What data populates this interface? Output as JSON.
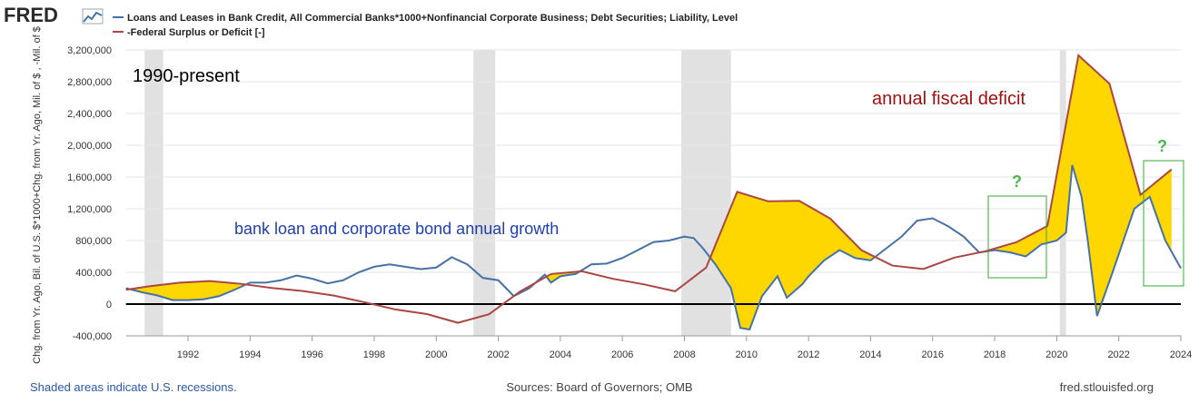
{
  "chart_data": {
    "type": "line",
    "logo": "FRED",
    "ylabel": "Chg. from Yr. Ago, Bil. of U.S. $*1000+Chg. from Yr. Ago, Mil. of $ , -Mil. of $",
    "xlim": [
      1990,
      2024
    ],
    "xticks": [
      1992,
      1994,
      1996,
      1998,
      2000,
      2002,
      2004,
      2006,
      2008,
      2010,
      2012,
      2014,
      2016,
      2018,
      2020,
      2022,
      2024
    ],
    "ylim": [
      -400000,
      3200000
    ],
    "yticks": [
      {
        "value": -400000,
        "label": "-400,000"
      },
      0,
      {
        "value": 400000,
        "label": "400,000"
      },
      {
        "value": 800000,
        "label": "800,000"
      },
      {
        "value": 1200000,
        "label": "1,200,000"
      },
      {
        "value": 1600000,
        "label": "1,600,000"
      },
      {
        "value": 2000000,
        "label": "2,000,000"
      },
      {
        "value": 2400000,
        "label": "2,400,000"
      },
      {
        "value": 2800000,
        "label": "2,800,000"
      },
      {
        "value": 3200000,
        "label": "3,200,000"
      }
    ],
    "grid": true,
    "recessions": [
      [
        1990.6,
        1991.2
      ],
      [
        2001.2,
        2001.9
      ],
      [
        2007.9,
        2009.5
      ],
      [
        2020.1,
        2020.3
      ]
    ],
    "series": [
      {
        "name": "Loans and Leases in Bank Credit, All Commercial Banks*1000+Nonfinancial Corporate Business; Debt Securities; Liability, Level",
        "color": "#4572a7",
        "x": [
          1990.0,
          1990.5,
          1991.0,
          1991.5,
          1992.0,
          1992.5,
          1993.0,
          1993.5,
          1994.0,
          1994.5,
          1995.0,
          1995.5,
          1996.0,
          1996.5,
          1997.0,
          1997.5,
          1998.0,
          1998.5,
          1999.0,
          1999.5,
          2000.0,
          2000.5,
          2001.0,
          2001.5,
          2002.0,
          2002.5,
          2003.0,
          2003.5,
          2003.7,
          2004.0,
          2004.5,
          2005.0,
          2005.5,
          2006.0,
          2006.5,
          2007.0,
          2007.5,
          2008.0,
          2008.3,
          2008.6,
          2009.0,
          2009.5,
          2009.8,
          2010.1,
          2010.5,
          2011.0,
          2011.3,
          2011.8,
          2012.0,
          2012.5,
          2013.0,
          2013.5,
          2014.0,
          2014.5,
          2015.0,
          2015.5,
          2016.0,
          2016.5,
          2017.0,
          2017.5,
          2018.0,
          2018.5,
          2019.0,
          2019.5,
          2020.0,
          2020.3,
          2020.5,
          2020.8,
          2021.0,
          2021.3,
          2021.8,
          2022.5,
          2023.0,
          2023.5,
          2024.0
        ],
        "values": [
          200000,
          150000,
          110000,
          50000,
          50000,
          60000,
          100000,
          180000,
          270000,
          270000,
          300000,
          360000,
          320000,
          260000,
          300000,
          400000,
          470000,
          500000,
          470000,
          440000,
          460000,
          590000,
          500000,
          330000,
          300000,
          100000,
          200000,
          370000,
          270000,
          350000,
          380000,
          500000,
          510000,
          580000,
          680000,
          780000,
          800000,
          850000,
          830000,
          700000,
          500000,
          200000,
          -300000,
          -320000,
          100000,
          350000,
          80000,
          250000,
          350000,
          550000,
          680000,
          580000,
          550000,
          700000,
          850000,
          1050000,
          1080000,
          980000,
          850000,
          650000,
          680000,
          650000,
          600000,
          750000,
          800000,
          900000,
          1750000,
          1350000,
          800000,
          -150000,
          400000,
          1200000,
          1350000,
          800000,
          450000
        ]
      },
      {
        "name": "-Federal Surplus or Deficit [-]",
        "color": "#aa4643",
        "x": [
          1990.0,
          1990.7,
          1991.7,
          1992.7,
          1993.7,
          1994.7,
          1995.7,
          1996.7,
          1997.7,
          1998.7,
          1999.7,
          2000.7,
          2001.7,
          2002.7,
          2003.7,
          2004.7,
          2005.7,
          2006.7,
          2007.7,
          2008.7,
          2009.7,
          2010.7,
          2011.7,
          2012.7,
          2013.7,
          2014.7,
          2015.7,
          2016.7,
          2017.7,
          2018.7,
          2019.7,
          2020.7,
          2021.7,
          2022.7,
          2023.7
        ],
        "values": [
          180000,
          221000,
          269000,
          290000,
          255000,
          203000,
          164000,
          107000,
          22000,
          -69000,
          -126000,
          -236000,
          -128000,
          158000,
          378000,
          413000,
          318000,
          248000,
          161000,
          459000,
          1413000,
          1294000,
          1300000,
          1077000,
          680000,
          485000,
          442000,
          585000,
          665000,
          779000,
          984000,
          3132000,
          2775000,
          1376000,
          1695000
        ]
      }
    ],
    "annotations": [
      "1990-present",
      "annual fiscal deficit",
      "bank loan and corporate bond annual growth",
      "?",
      "?"
    ],
    "note": "Shaded areas indicate U.S. recessions.",
    "source": "Sources: Board of Governors; OMB",
    "url": "fred.stlouisfed.org"
  }
}
